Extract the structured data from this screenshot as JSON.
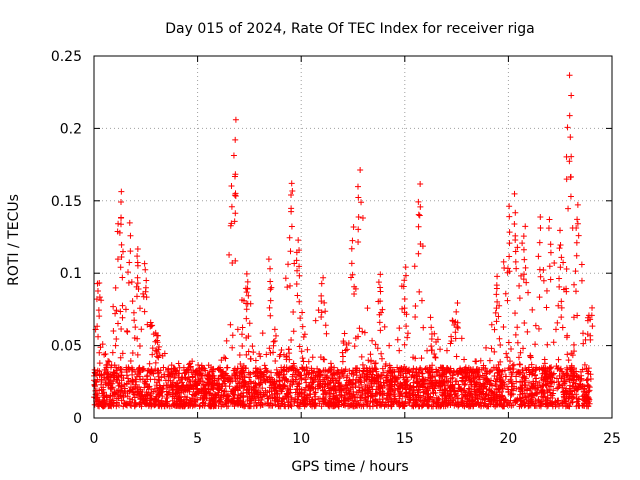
{
  "chart_data": {
    "type": "scatter",
    "title": "Day 015 of 2024, Rate Of TEC Index for receiver riga",
    "xlabel": "GPS time / hours",
    "ylabel": "ROTI / TECUs",
    "xlim": [
      0,
      25
    ],
    "ylim": [
      0,
      0.25
    ],
    "xticks": [
      0,
      5,
      10,
      15,
      20,
      25
    ],
    "yticks": [
      0,
      0.05,
      0.1,
      0.15,
      0.2,
      0.25
    ],
    "xtick_labels": [
      "0",
      "5",
      "10",
      "15",
      "20",
      "25"
    ],
    "ytick_labels": [
      "0",
      "0.05",
      "0.1",
      "0.15",
      "0.2",
      "0.25"
    ],
    "grid": true,
    "marker": "+",
    "color": "#ff0000",
    "series": [
      {
        "name": "ROTI",
        "time_range_hours": [
          0,
          24
        ],
        "baseline_range": [
          0.008,
          0.035
        ],
        "activity_peaks": [
          {
            "x": 0.2,
            "y": 0.095
          },
          {
            "x": 1.3,
            "y": 0.16
          },
          {
            "x": 1.7,
            "y": 0.135
          },
          {
            "x": 2.1,
            "y": 0.12
          },
          {
            "x": 2.5,
            "y": 0.11
          },
          {
            "x": 3.0,
            "y": 0.06
          },
          {
            "x": 6.8,
            "y": 0.206
          },
          {
            "x": 7.4,
            "y": 0.1
          },
          {
            "x": 8.5,
            "y": 0.11
          },
          {
            "x": 9.5,
            "y": 0.166
          },
          {
            "x": 9.8,
            "y": 0.125
          },
          {
            "x": 11.0,
            "y": 0.1
          },
          {
            "x": 12.5,
            "y": 0.133
          },
          {
            "x": 12.8,
            "y": 0.174
          },
          {
            "x": 13.8,
            "y": 0.1
          },
          {
            "x": 15.0,
            "y": 0.105
          },
          {
            "x": 15.7,
            "y": 0.163
          },
          {
            "x": 16.3,
            "y": 0.07
          },
          {
            "x": 17.5,
            "y": 0.08
          },
          {
            "x": 19.4,
            "y": 0.1
          },
          {
            "x": 20.0,
            "y": 0.15
          },
          {
            "x": 20.3,
            "y": 0.155
          },
          {
            "x": 20.8,
            "y": 0.135
          },
          {
            "x": 21.5,
            "y": 0.14
          },
          {
            "x": 22.0,
            "y": 0.14
          },
          {
            "x": 22.5,
            "y": 0.13
          },
          {
            "x": 23.0,
            "y": 0.238
          },
          {
            "x": 23.3,
            "y": 0.15
          },
          {
            "x": 24.0,
            "y": 0.078
          }
        ]
      }
    ]
  }
}
